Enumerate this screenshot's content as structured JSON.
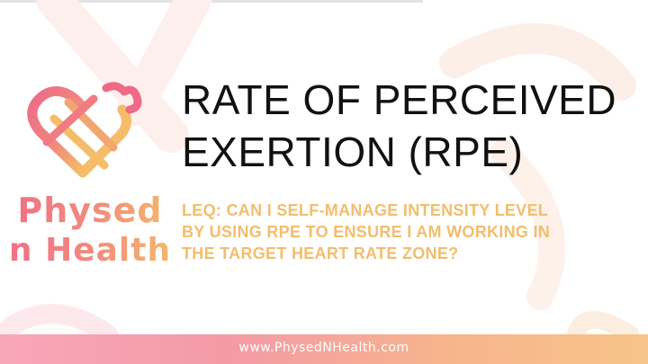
{
  "slide": {
    "title_line_1": "RATE OF PERCEIVED",
    "title_line_2": "EXERTION (RPE)",
    "subtitle_line_1": "LEQ: CAN I SELF-MANAGE INTENSITY LEVEL",
    "subtitle_line_2": "BY USING RPE TO ENSURE I AM WORKING IN",
    "subtitle_line_3": "THE TARGET HEART RATE ZONE?"
  },
  "logo": {
    "line_1": "Physed",
    "line_2": "n Health",
    "icon": "heart-icon"
  },
  "footer": {
    "url": "www.PhysedNHealth.com"
  },
  "colors": {
    "title": "#111111",
    "subtitle": "#f2bd6d",
    "logo_pink": "#ef6f88",
    "logo_orange": "#f5bd6a",
    "footer_start": "#f8a7b9",
    "footer_end": "#f7c489"
  }
}
